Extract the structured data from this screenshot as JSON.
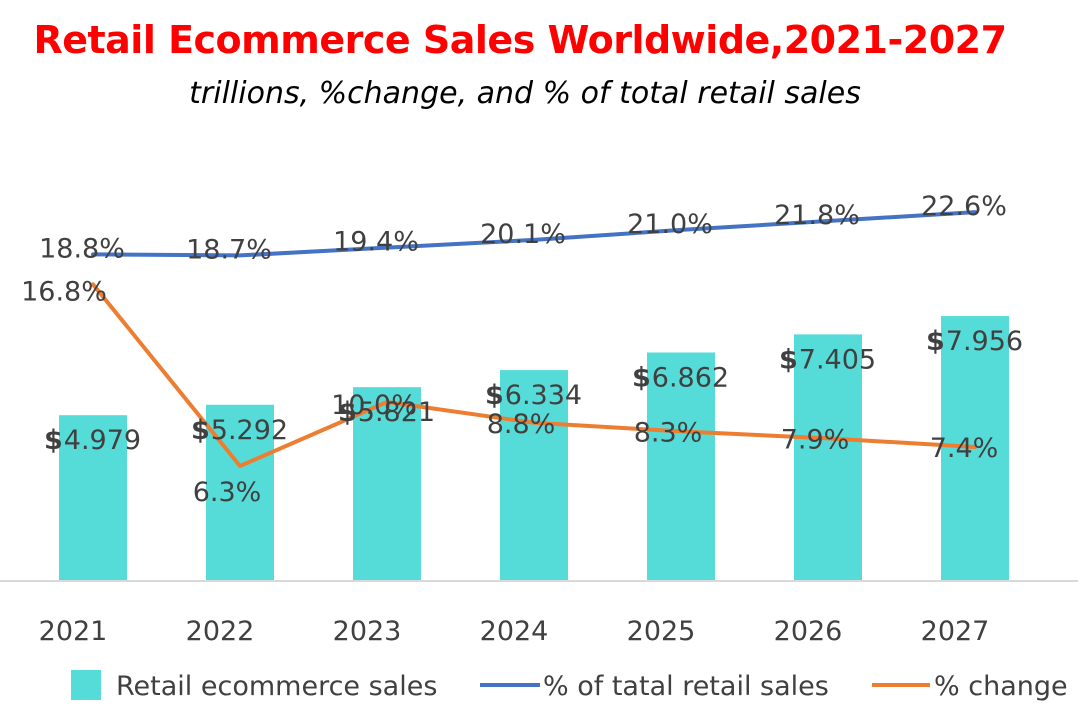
{
  "chart_data": {
    "type": "bar",
    "title": "Retail Ecommerce Sales Worldwide,2021-2027",
    "subtitle": "trillions, %change, and % of total retail sales",
    "categories": [
      "2021",
      "2022",
      "2023",
      "2024",
      "2025",
      "2026",
      "2027"
    ],
    "series": [
      {
        "name": "Retail ecommerce sales",
        "type": "bar",
        "values": [
          4.979,
          5.292,
          5.821,
          6.334,
          6.862,
          7.405,
          7.956
        ],
        "labels": [
          "4.979",
          "5.292",
          "5.821",
          "6.334",
          "6.862",
          "7.405",
          "7.956"
        ],
        "label_prefix": "$",
        "color": "#56dcd8"
      },
      {
        "name": "% of tatal retail sales",
        "type": "line",
        "values": [
          18.8,
          18.7,
          19.4,
          20.1,
          21.0,
          21.8,
          22.6
        ],
        "labels": [
          "18.8%",
          "18.7%",
          "19.4%",
          "20.1%",
          "21.0%",
          "21.8%",
          "22.6%"
        ],
        "color": "#4472c4"
      },
      {
        "name": "% change",
        "type": "line",
        "values": [
          16.8,
          6.3,
          10.0,
          8.8,
          8.3,
          7.9,
          7.4
        ],
        "labels": [
          "16.8%",
          "6.3%",
          "10.0%",
          "8.8%",
          "8.3%",
          "7.9%",
          "7.4%"
        ],
        "color": "#ed7d31"
      }
    ],
    "legend_position": "bottom",
    "grid": false
  }
}
